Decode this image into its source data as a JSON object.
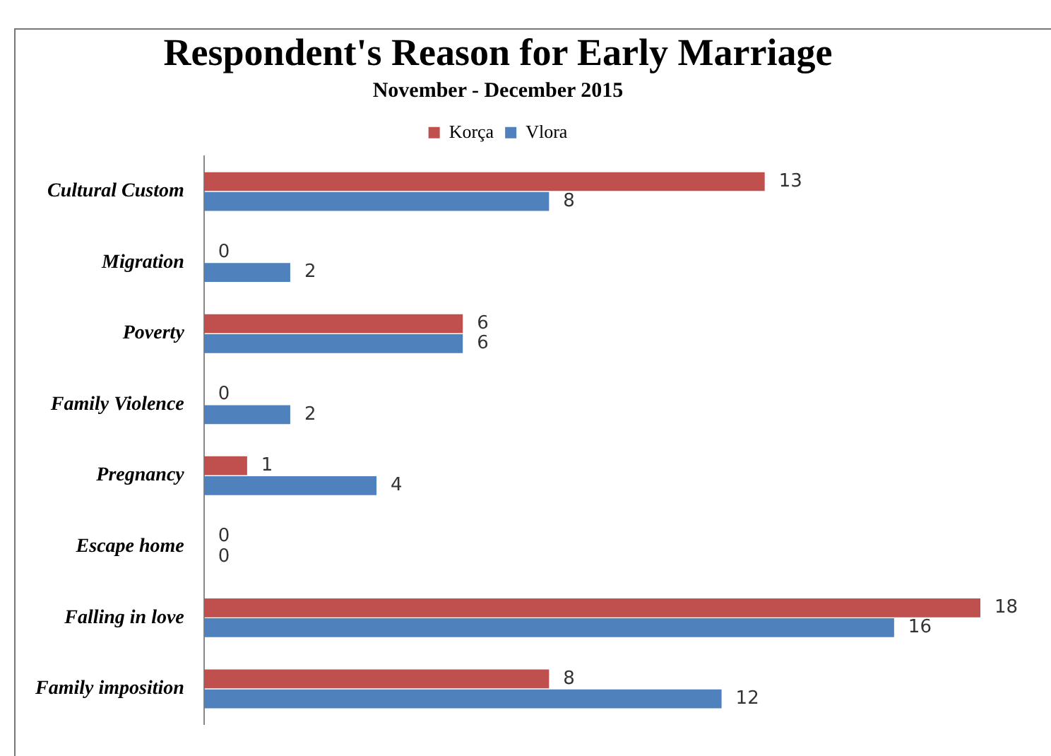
{
  "chart_data": {
    "type": "bar",
    "orientation": "horizontal",
    "title": "Respondent's Reason for Early Marriage",
    "subtitle": "November - December 2015",
    "categories": [
      "Cultural Custom",
      "Migration",
      "Poverty",
      "Family Violence",
      "Pregnancy",
      "Escape home",
      "Falling in love",
      "Family imposition"
    ],
    "series": [
      {
        "name": "Korça",
        "color": "#c0504d",
        "values": [
          13,
          0,
          6,
          0,
          1,
          0,
          18,
          8
        ]
      },
      {
        "name": "Vlora",
        "color": "#4f81bd",
        "values": [
          8,
          2,
          6,
          2,
          4,
          0,
          16,
          12
        ]
      }
    ],
    "data_labels": true,
    "legend": "top",
    "grid": false
  }
}
